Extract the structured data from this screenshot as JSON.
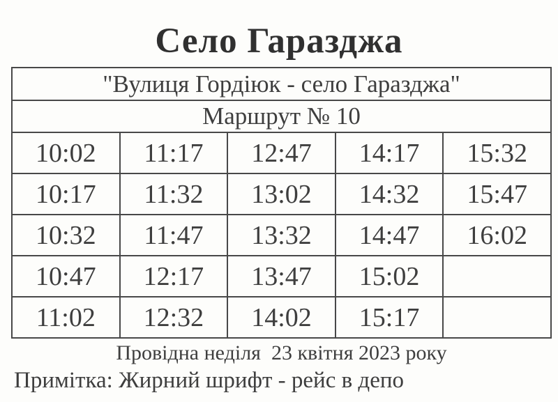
{
  "page": {
    "title": "Село Гаразджа",
    "date_line": "Провідна неділя  23 квітня 2023 року",
    "note_line": "Примітка: Жирний шрифт - рейс в депо"
  },
  "table": {
    "route_header": "\"Вулиця Гордіюк - село Гаразджа\"",
    "route_number": "Маршрут № 10",
    "columns": 5,
    "rows": [
      [
        "10:02",
        "11:17",
        "12:47",
        "14:17",
        "15:32"
      ],
      [
        "10:17",
        "11:32",
        "13:02",
        "14:32",
        "15:47"
      ],
      [
        "10:32",
        "11:47",
        "13:32",
        "14:47",
        "16:02"
      ],
      [
        "10:47",
        "12:17",
        "13:47",
        "15:02",
        ""
      ],
      [
        "11:02",
        "12:32",
        "14:02",
        "15:17",
        ""
      ]
    ],
    "bold_cells": [
      [
        2,
        4
      ]
    ]
  },
  "colors": {
    "paper": "#fdfdfb",
    "ink": "#3e3e3e",
    "ink_dark": "#303030",
    "border": "#484848"
  }
}
